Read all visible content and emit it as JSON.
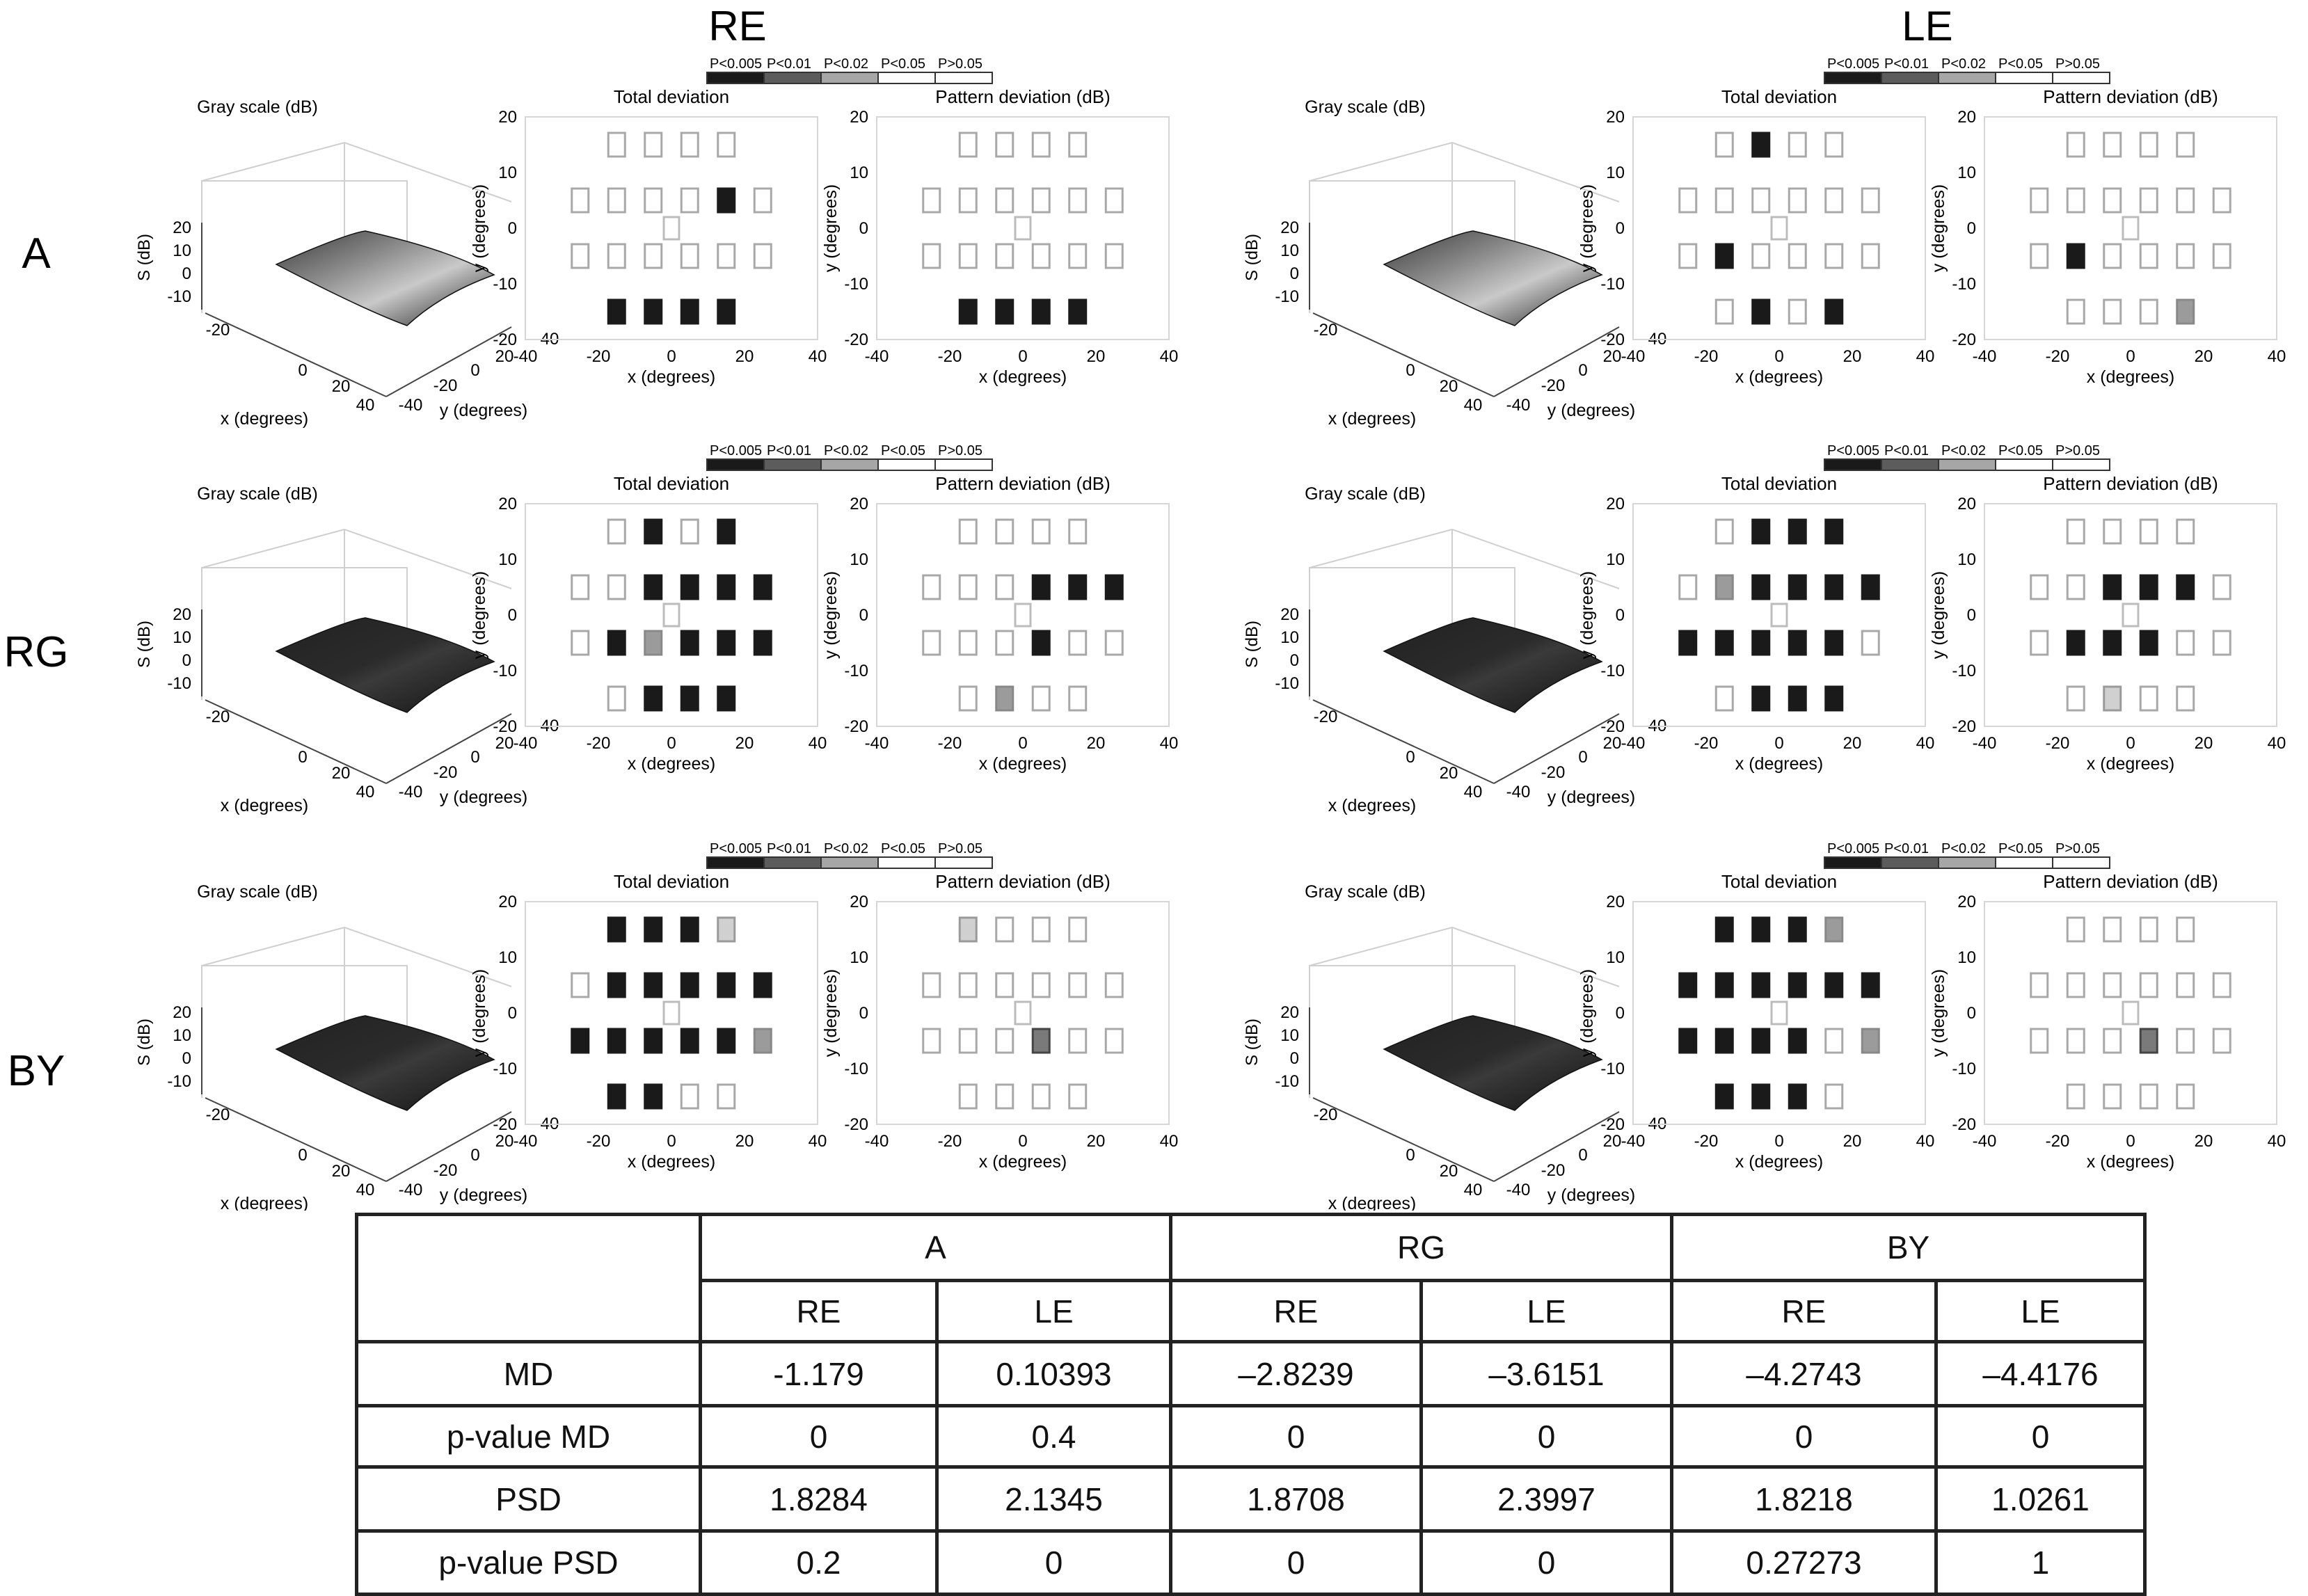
{
  "eye_labels": [
    "RE",
    "LE"
  ],
  "row_labels": [
    "A",
    "RG",
    "BY"
  ],
  "legend": [
    "P<0.005",
    "P<0.01",
    "P<0.02",
    "P<0.05",
    "P>0.05"
  ],
  "legend_colors": [
    "#1a1a1a",
    "#5c5c5c",
    "#a6a6a6",
    "#ffffff",
    "#ffffff"
  ],
  "panel_titles": {
    "gray": "Gray scale (dB)",
    "total": "Total deviation",
    "pattern": "Pattern deviation (dB)"
  },
  "axes": {
    "x_label": "x (degrees)",
    "y_label": "y (degrees)",
    "s_label": "S (dB)",
    "dev_ticks": [
      "-40",
      "-20",
      "0",
      "20",
      "40"
    ],
    "dev_y_ticks": [
      "20",
      "10",
      "0",
      "-10",
      "-20"
    ],
    "s_ticks": [
      "20",
      "10",
      "0",
      "-10"
    ],
    "surf_x_ticks": [
      "-20",
      "0",
      "20",
      "40"
    ],
    "surf_y_ticks": [
      "40",
      "-40",
      "-20",
      "0",
      "20",
      "40"
    ]
  },
  "probability_maps": {
    "point_order": "[x, y] in degrees; levels 0=P<0.005 (black), 1=P<0.01 (dark gray), 2=P<0.02 (gray), 3=P<0.05 (light gray), 4=P>0.05 (white)",
    "A": {
      "RE": {
        "total": [
          [
            -15,
            15,
            4
          ],
          [
            -5,
            15,
            4
          ],
          [
            5,
            15,
            4
          ],
          [
            15,
            15,
            4
          ],
          [
            -25,
            5,
            4
          ],
          [
            -15,
            5,
            4
          ],
          [
            -5,
            5,
            4
          ],
          [
            5,
            5,
            4
          ],
          [
            15,
            5,
            0
          ],
          [
            25,
            5,
            4
          ],
          [
            -25,
            -5,
            4
          ],
          [
            -15,
            -5,
            4
          ],
          [
            -5,
            -5,
            4
          ],
          [
            5,
            -5,
            4
          ],
          [
            15,
            -5,
            4
          ],
          [
            25,
            -5,
            4
          ],
          [
            -15,
            -15,
            0
          ],
          [
            -5,
            -15,
            0
          ],
          [
            5,
            -15,
            0
          ],
          [
            15,
            -15,
            0
          ]
        ],
        "pattern": [
          [
            -15,
            15,
            4
          ],
          [
            -5,
            15,
            4
          ],
          [
            5,
            15,
            4
          ],
          [
            15,
            15,
            4
          ],
          [
            -25,
            5,
            4
          ],
          [
            -15,
            5,
            4
          ],
          [
            -5,
            5,
            4
          ],
          [
            5,
            5,
            4
          ],
          [
            15,
            5,
            4
          ],
          [
            25,
            5,
            4
          ],
          [
            -25,
            -5,
            4
          ],
          [
            -15,
            -5,
            4
          ],
          [
            -5,
            -5,
            4
          ],
          [
            5,
            -5,
            4
          ],
          [
            15,
            -5,
            4
          ],
          [
            25,
            -5,
            4
          ],
          [
            -15,
            -15,
            0
          ],
          [
            -5,
            -15,
            0
          ],
          [
            5,
            -15,
            0
          ],
          [
            15,
            -15,
            0
          ]
        ]
      },
      "LE": {
        "total": [
          [
            -15,
            15,
            4
          ],
          [
            -5,
            15,
            0
          ],
          [
            5,
            15,
            4
          ],
          [
            15,
            15,
            4
          ],
          [
            -25,
            5,
            4
          ],
          [
            -15,
            5,
            4
          ],
          [
            -5,
            5,
            4
          ],
          [
            5,
            5,
            4
          ],
          [
            15,
            5,
            4
          ],
          [
            25,
            5,
            4
          ],
          [
            -25,
            -5,
            4
          ],
          [
            -15,
            -5,
            0
          ],
          [
            -5,
            -5,
            4
          ],
          [
            5,
            -5,
            4
          ],
          [
            15,
            -5,
            4
          ],
          [
            25,
            -5,
            4
          ],
          [
            -15,
            -15,
            4
          ],
          [
            -5,
            -15,
            0
          ],
          [
            5,
            -15,
            4
          ],
          [
            15,
            -15,
            0
          ]
        ],
        "pattern": [
          [
            -15,
            15,
            4
          ],
          [
            -5,
            15,
            4
          ],
          [
            5,
            15,
            4
          ],
          [
            15,
            15,
            4
          ],
          [
            -25,
            5,
            4
          ],
          [
            -15,
            5,
            4
          ],
          [
            -5,
            5,
            4
          ],
          [
            5,
            5,
            4
          ],
          [
            15,
            5,
            4
          ],
          [
            25,
            5,
            4
          ],
          [
            -25,
            -5,
            4
          ],
          [
            -15,
            -5,
            0
          ],
          [
            -5,
            -5,
            4
          ],
          [
            5,
            -5,
            4
          ],
          [
            15,
            -5,
            4
          ],
          [
            25,
            -5,
            4
          ],
          [
            -15,
            -15,
            4
          ],
          [
            -5,
            -15,
            4
          ],
          [
            5,
            -15,
            4
          ],
          [
            15,
            -15,
            2
          ]
        ]
      }
    },
    "RG": {
      "RE": {
        "total": [
          [
            -15,
            15,
            4
          ],
          [
            -5,
            15,
            0
          ],
          [
            5,
            15,
            4
          ],
          [
            15,
            15,
            0
          ],
          [
            -25,
            5,
            4
          ],
          [
            -15,
            5,
            4
          ],
          [
            -5,
            5,
            0
          ],
          [
            5,
            5,
            0
          ],
          [
            15,
            5,
            0
          ],
          [
            25,
            5,
            0
          ],
          [
            -25,
            -5,
            4
          ],
          [
            -15,
            -5,
            0
          ],
          [
            -5,
            -5,
            2
          ],
          [
            5,
            -5,
            0
          ],
          [
            15,
            -5,
            0
          ],
          [
            25,
            -5,
            0
          ],
          [
            -15,
            -15,
            4
          ],
          [
            -5,
            -15,
            0
          ],
          [
            5,
            -15,
            0
          ],
          [
            15,
            -15,
            0
          ]
        ],
        "pattern": [
          [
            -15,
            15,
            4
          ],
          [
            -5,
            15,
            4
          ],
          [
            5,
            15,
            4
          ],
          [
            15,
            15,
            4
          ],
          [
            -25,
            5,
            4
          ],
          [
            -15,
            5,
            4
          ],
          [
            -5,
            5,
            4
          ],
          [
            5,
            5,
            0
          ],
          [
            15,
            5,
            0
          ],
          [
            25,
            5,
            0
          ],
          [
            -25,
            -5,
            4
          ],
          [
            -15,
            -5,
            4
          ],
          [
            -5,
            -5,
            4
          ],
          [
            5,
            -5,
            0
          ],
          [
            15,
            -5,
            4
          ],
          [
            25,
            -5,
            4
          ],
          [
            -15,
            -15,
            4
          ],
          [
            -5,
            -15,
            2
          ],
          [
            5,
            -15,
            4
          ],
          [
            15,
            -15,
            4
          ]
        ]
      },
      "LE": {
        "total": [
          [
            -15,
            15,
            4
          ],
          [
            -5,
            15,
            0
          ],
          [
            5,
            15,
            0
          ],
          [
            15,
            15,
            0
          ],
          [
            -25,
            5,
            4
          ],
          [
            -15,
            5,
            2
          ],
          [
            -5,
            5,
            0
          ],
          [
            5,
            5,
            0
          ],
          [
            15,
            5,
            0
          ],
          [
            25,
            5,
            0
          ],
          [
            -25,
            -5,
            0
          ],
          [
            -15,
            -5,
            0
          ],
          [
            -5,
            -5,
            0
          ],
          [
            5,
            -5,
            0
          ],
          [
            15,
            -5,
            0
          ],
          [
            25,
            -5,
            4
          ],
          [
            -15,
            -15,
            4
          ],
          [
            -5,
            -15,
            0
          ],
          [
            5,
            -15,
            0
          ],
          [
            15,
            -15,
            0
          ]
        ],
        "pattern": [
          [
            -15,
            15,
            4
          ],
          [
            -5,
            15,
            4
          ],
          [
            5,
            15,
            4
          ],
          [
            15,
            15,
            4
          ],
          [
            -25,
            5,
            4
          ],
          [
            -15,
            5,
            4
          ],
          [
            -5,
            5,
            0
          ],
          [
            5,
            5,
            0
          ],
          [
            15,
            5,
            0
          ],
          [
            25,
            5,
            4
          ],
          [
            -25,
            -5,
            4
          ],
          [
            -15,
            -5,
            0
          ],
          [
            -5,
            -5,
            0
          ],
          [
            5,
            -5,
            0
          ],
          [
            15,
            -5,
            4
          ],
          [
            25,
            -5,
            4
          ],
          [
            -15,
            -15,
            4
          ],
          [
            -5,
            -15,
            3
          ],
          [
            5,
            -15,
            4
          ],
          [
            15,
            -15,
            4
          ]
        ]
      }
    },
    "BY": {
      "RE": {
        "total": [
          [
            -15,
            15,
            0
          ],
          [
            -5,
            15,
            0
          ],
          [
            5,
            15,
            0
          ],
          [
            15,
            15,
            3
          ],
          [
            -25,
            5,
            4
          ],
          [
            -15,
            5,
            0
          ],
          [
            -5,
            5,
            0
          ],
          [
            5,
            5,
            0
          ],
          [
            15,
            5,
            0
          ],
          [
            25,
            5,
            0
          ],
          [
            -25,
            -5,
            0
          ],
          [
            -15,
            -5,
            0
          ],
          [
            -5,
            -5,
            0
          ],
          [
            5,
            -5,
            0
          ],
          [
            15,
            -5,
            0
          ],
          [
            25,
            -5,
            2
          ],
          [
            -15,
            -15,
            0
          ],
          [
            -5,
            -15,
            0
          ],
          [
            5,
            -15,
            4
          ],
          [
            15,
            -15,
            4
          ]
        ],
        "pattern": [
          [
            -15,
            15,
            3
          ],
          [
            -5,
            15,
            4
          ],
          [
            5,
            15,
            4
          ],
          [
            15,
            15,
            4
          ],
          [
            -25,
            5,
            4
          ],
          [
            -15,
            5,
            4
          ],
          [
            -5,
            5,
            4
          ],
          [
            5,
            5,
            4
          ],
          [
            15,
            5,
            4
          ],
          [
            25,
            5,
            4
          ],
          [
            -25,
            -5,
            4
          ],
          [
            -15,
            -5,
            4
          ],
          [
            -5,
            -5,
            4
          ],
          [
            5,
            -5,
            1
          ],
          [
            15,
            -5,
            4
          ],
          [
            25,
            -5,
            4
          ],
          [
            -15,
            -15,
            4
          ],
          [
            -5,
            -15,
            4
          ],
          [
            5,
            -15,
            4
          ],
          [
            15,
            -15,
            4
          ]
        ]
      },
      "LE": {
        "total": [
          [
            -15,
            15,
            0
          ],
          [
            -5,
            15,
            0
          ],
          [
            5,
            15,
            0
          ],
          [
            15,
            15,
            2
          ],
          [
            -25,
            5,
            0
          ],
          [
            -15,
            5,
            0
          ],
          [
            -5,
            5,
            0
          ],
          [
            5,
            5,
            0
          ],
          [
            15,
            5,
            0
          ],
          [
            25,
            5,
            0
          ],
          [
            -25,
            -5,
            0
          ],
          [
            -15,
            -5,
            0
          ],
          [
            -5,
            -5,
            0
          ],
          [
            5,
            -5,
            0
          ],
          [
            15,
            -5,
            4
          ],
          [
            25,
            -5,
            2
          ],
          [
            -15,
            -15,
            0
          ],
          [
            -5,
            -15,
            0
          ],
          [
            5,
            -15,
            0
          ],
          [
            15,
            -15,
            4
          ]
        ],
        "pattern": [
          [
            -15,
            15,
            4
          ],
          [
            -5,
            15,
            4
          ],
          [
            5,
            15,
            4
          ],
          [
            15,
            15,
            4
          ],
          [
            -25,
            5,
            4
          ],
          [
            -15,
            5,
            4
          ],
          [
            -5,
            5,
            4
          ],
          [
            5,
            5,
            4
          ],
          [
            15,
            5,
            4
          ],
          [
            25,
            5,
            4
          ],
          [
            -25,
            -5,
            4
          ],
          [
            -15,
            -5,
            4
          ],
          [
            -5,
            -5,
            4
          ],
          [
            5,
            -5,
            1
          ],
          [
            15,
            -5,
            4
          ],
          [
            25,
            -5,
            4
          ],
          [
            -15,
            -15,
            4
          ],
          [
            -5,
            -15,
            4
          ],
          [
            5,
            -15,
            4
          ],
          [
            15,
            -15,
            4
          ]
        ]
      }
    }
  },
  "table": {
    "groups": [
      "A",
      "RG",
      "BY"
    ],
    "eyes": [
      "RE",
      "LE",
      "RE",
      "LE",
      "RE",
      "LE"
    ],
    "rows": [
      {
        "label": "MD",
        "values": [
          "-1.179",
          "0.10393",
          "–2.8239",
          "–3.6151",
          "–4.2743",
          "–4.4176"
        ]
      },
      {
        "label": "p-value MD",
        "values": [
          "0",
          "0.4",
          "0",
          "0",
          "0",
          "0"
        ]
      },
      {
        "label": "PSD",
        "values": [
          "1.8284",
          "2.1345",
          "1.8708",
          "2.3997",
          "1.8218",
          "1.0261"
        ]
      },
      {
        "label": "p-value PSD",
        "values": [
          "0.2",
          "0",
          "0",
          "0",
          "0.27273",
          "1"
        ]
      }
    ]
  }
}
